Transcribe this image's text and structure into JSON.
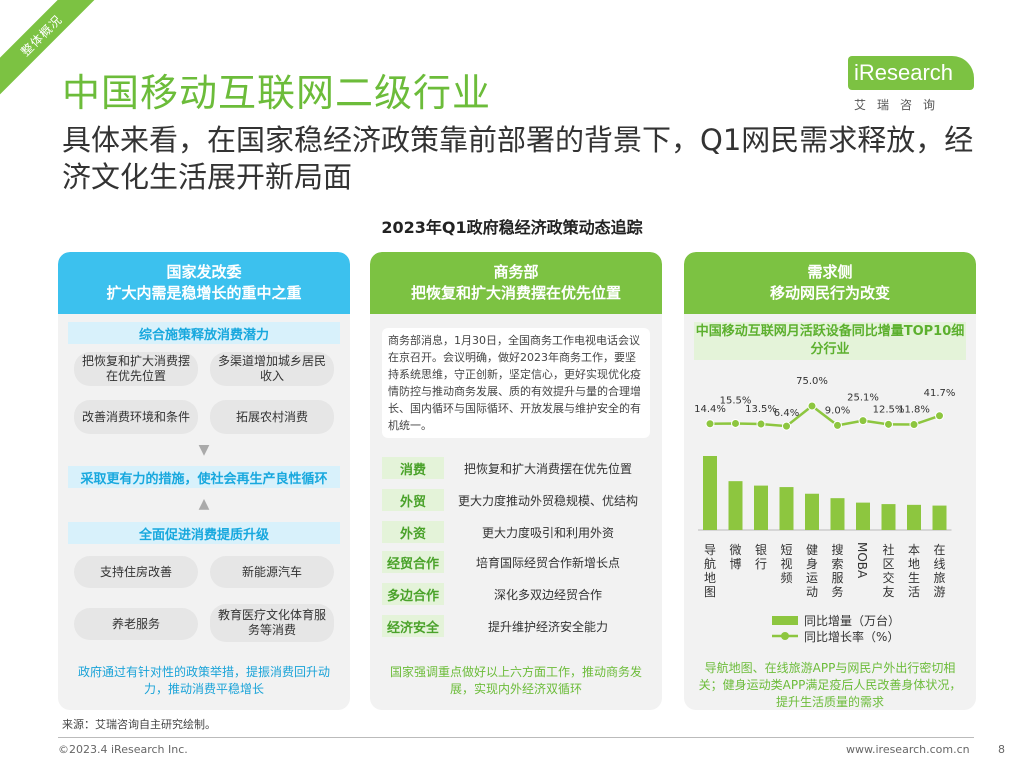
{
  "ribbon": "整体概况",
  "title": "中国移动互联网二级行业",
  "logo": {
    "word": "iResearch",
    "cn": "艾瑞咨询"
  },
  "subtitle": "具体来看，在国家稳经济政策靠前部署的背景下，Q1网民需求释放，经济文化生活展开新局面",
  "chart_title": "2023年Q1政府稳经济政策动态追踪",
  "panel1": {
    "head1": "国家发改委",
    "head2": "扩大内需是稳增长的重中之重",
    "sec1": "综合施策释放消费潜力",
    "pills1": [
      "把恢复和扩大消费摆在优先位置",
      "多渠道增加城乡居民收入",
      "改善消费环境和条件",
      "拓展农村消费"
    ],
    "sec2": "采取更有力的措施，使社会再生产良性循环",
    "sec3": "全面促进消费提质升级",
    "pills2": [
      "支持住房改善",
      "新能源汽车",
      "养老服务",
      "教育医疗文化体育服务等消费"
    ],
    "foot": "政府通过有针对性的政策举措，提振消费回升动力，推动消费平稳增长"
  },
  "panel2": {
    "head1": "商务部",
    "head2": "把恢复和扩大消费摆在优先位置",
    "note": "商务部消息，1月30日，全国商务工作电视电话会议在京召开。会议明确，做好2023年商务工作，要坚持系统思维，守正创新，坚定信心，更好实现优化疫情防控与推动商务发展、质的有效提升与量的合理增长、国内循环与国际循环、开放发展与维护安全的有机统一。",
    "rows": [
      {
        "tag": "消费",
        "text": "把恢复和扩大消费摆在优先位置"
      },
      {
        "tag": "外贸",
        "text": "更大力度推动外贸稳规模、优结构"
      },
      {
        "tag": "外资",
        "text": "更大力度吸引和利用外资"
      },
      {
        "tag": "经贸合作",
        "text": "培育国际经贸合作新增长点"
      },
      {
        "tag": "多边合作",
        "text": "深化多双边经贸合作"
      },
      {
        "tag": "经济安全",
        "text": "提升维护经济安全能力"
      }
    ],
    "foot": "国家强调重点做好以上六方面工作，推动商务发展，实现内外经济双循环"
  },
  "panel3": {
    "head1": "需求侧",
    "head2": "移动网民行为改变",
    "sec": "中国移动互联网月活跃设备同比增量TOP10细分行业",
    "legend_bar": "同比增量（万台）",
    "legend_line": "同比增长率（%）",
    "foot": "导航地图、在线旅游APP与网民户外出行密切相关；健身运动类APP满足疫后人民改善身体状况，提升生活质量的需求"
  },
  "chart_data": {
    "type": "bar",
    "categories": [
      "导航地图",
      "微博",
      "银行",
      "短视频",
      "健身运动",
      "搜索服务",
      "MOBA",
      "社区交友",
      "本地生活",
      "在线旅游"
    ],
    "series": [
      {
        "name": "同比增量（万台）",
        "type": "bar",
        "values": [
          100,
          66,
          60,
          58,
          49,
          43,
          37,
          35,
          34,
          33
        ]
      },
      {
        "name": "同比增长率（%）",
        "type": "line",
        "values": [
          14.4,
          15.5,
          13.5,
          6.4,
          75.0,
          9.0,
          25.1,
          12.5,
          11.8,
          41.7
        ],
        "labels": [
          "14.4%",
          "15.5%",
          "13.5%",
          "6.4%",
          "75.0%",
          "9.0%",
          "25.1%",
          "12.5%",
          "11.8%",
          "41.7%"
        ]
      }
    ],
    "colors": {
      "bar": "#8dc63f",
      "line": "#8dc63f"
    }
  },
  "footer": {
    "source": "来源：艾瑞咨询自主研究绘制。",
    "copyright": "©2023.4 iResearch Inc.",
    "site": "www.iresearch.com.cn",
    "page": "8"
  }
}
